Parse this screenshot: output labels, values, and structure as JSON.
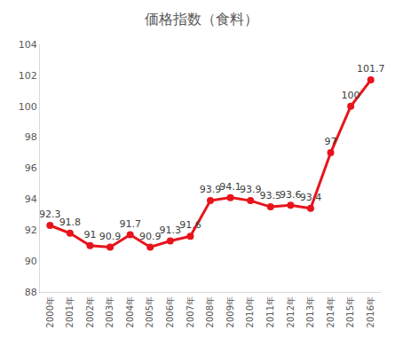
{
  "chart_data": {
    "type": "line",
    "title": "価格指数（食料）",
    "categories": [
      "2000年",
      "2001年",
      "2002年",
      "2003年",
      "2004年",
      "2005年",
      "2006年",
      "2007年",
      "2008年",
      "2009年",
      "2010年",
      "2011年",
      "2012年",
      "2013年",
      "2014年",
      "2015年",
      "2016年"
    ],
    "values": [
      92.3,
      91.8,
      91,
      90.9,
      91.7,
      90.9,
      91.3,
      91.6,
      93.9,
      94.1,
      93.9,
      93.5,
      93.6,
      93.4,
      97,
      100,
      101.7
    ],
    "color": "#e8141b",
    "marker": "circle",
    "ylim": [
      88,
      104
    ],
    "yticks": [
      88,
      90,
      92,
      94,
      96,
      98,
      100,
      102,
      104
    ],
    "grid": false,
    "data_labels": true
  }
}
